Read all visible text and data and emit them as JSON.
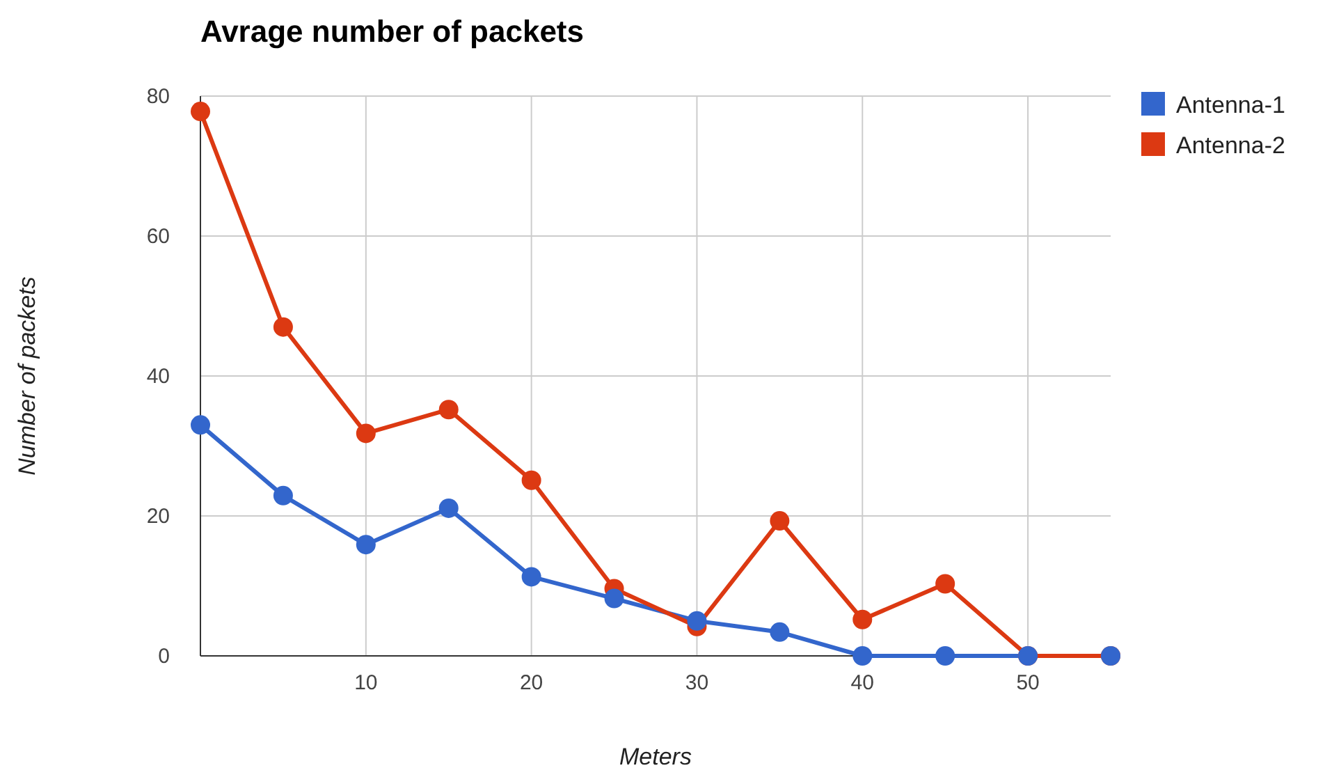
{
  "chart_data": {
    "type": "line",
    "title": "Avrage number of packets",
    "xlabel": "Meters",
    "ylabel": "Number of packets",
    "x": [
      0,
      5,
      10,
      15,
      20,
      25,
      30,
      35,
      40,
      45,
      50,
      55
    ],
    "series": [
      {
        "name": "Antenna-1",
        "color": "#3366cc",
        "values": [
          33,
          22.9,
          15.9,
          21.1,
          11.3,
          8.2,
          5,
          3.4,
          0,
          0,
          0,
          0
        ]
      },
      {
        "name": "Antenna-2",
        "color": "#dc3912",
        "values": [
          77.8,
          47,
          31.8,
          35.2,
          25.1,
          9.6,
          4.2,
          19.3,
          5.2,
          10.3,
          0,
          0
        ]
      }
    ],
    "xlim": [
      0,
      55
    ],
    "xticks": [
      10,
      20,
      30,
      40,
      50
    ],
    "ylim": [
      0,
      80
    ],
    "yticks": [
      0,
      20,
      40,
      60,
      80
    ],
    "grid": true,
    "legend": "right",
    "marker": "circle",
    "line_style": "solid"
  }
}
